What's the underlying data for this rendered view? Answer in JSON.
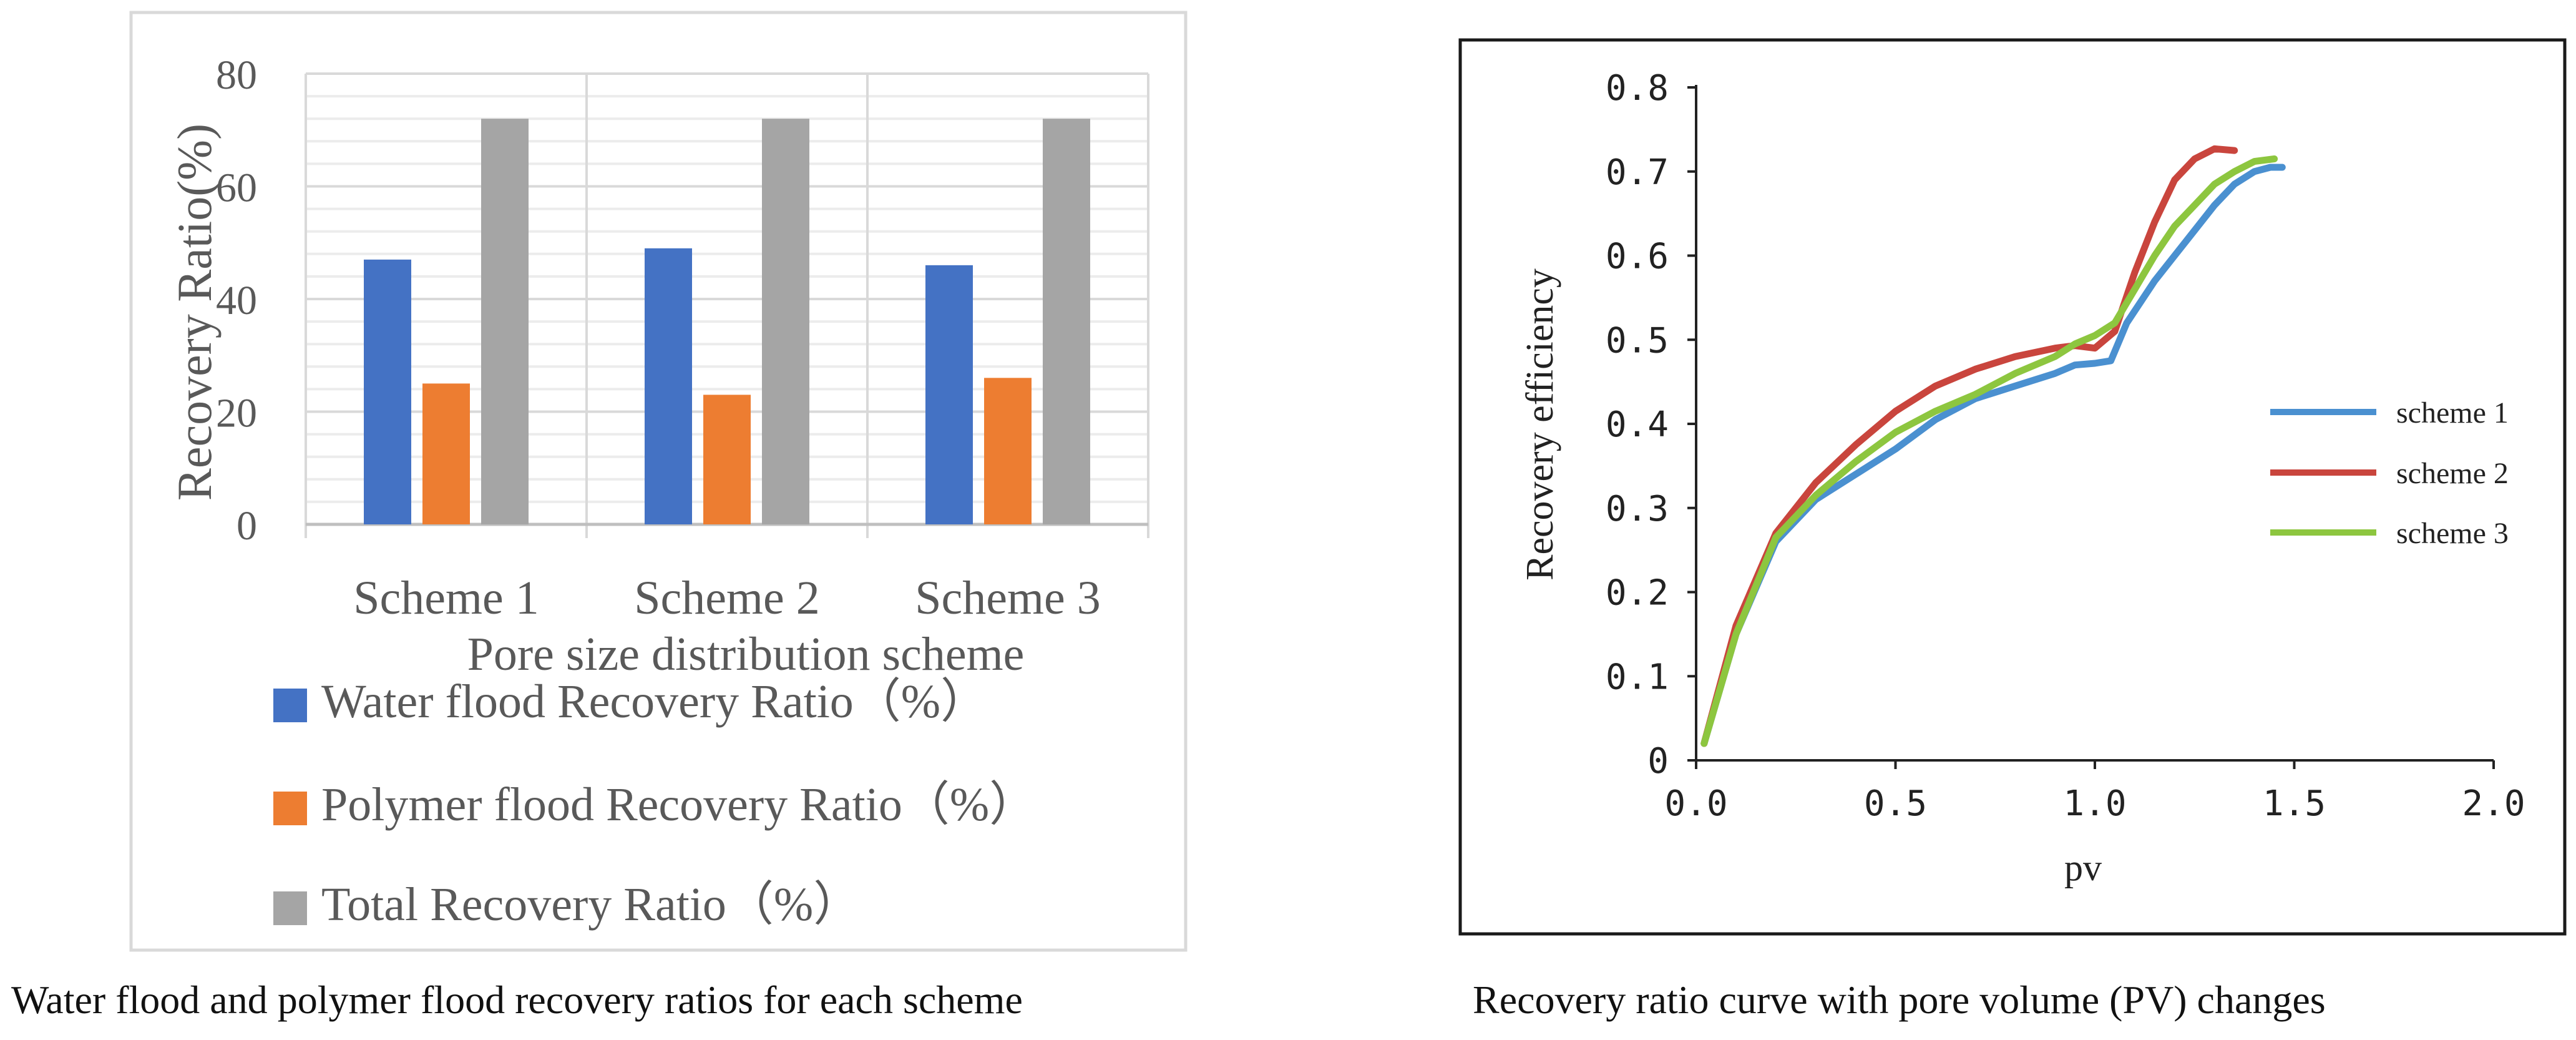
{
  "chart_data": [
    {
      "type": "bar",
      "title": "",
      "categories": [
        "Scheme 1",
        "Scheme 2",
        "Scheme 3"
      ],
      "series": [
        {
          "name": "Water flood Recovery Ratio（%）",
          "color": "#4472C4",
          "values": [
            47,
            49,
            46
          ]
        },
        {
          "name": "Polymer flood Recovery Ratio（%）",
          "color": "#ED7D31",
          "values": [
            25,
            23,
            26
          ]
        },
        {
          "name": "Total Recovery Ratio（%）",
          "color": "#A5A5A5",
          "values": [
            72,
            72,
            72
          ]
        }
      ],
      "xlabel": "Pore size distribution scheme",
      "ylabel": "Recovery Ratio(%)",
      "ylim": [
        0,
        80
      ],
      "yticks": [
        0,
        20,
        40,
        60,
        80
      ],
      "grid": true,
      "legend_position": "bottom",
      "caption": "Water flood and polymer flood recovery ratios for each scheme"
    },
    {
      "type": "line",
      "title": "",
      "xlabel": "pv",
      "ylabel": "Recovery efficiency",
      "xlim": [
        0,
        2.0
      ],
      "ylim": [
        0,
        0.8
      ],
      "xticks": [
        "0.0",
        "0.5",
        "1.0",
        "1.5",
        "2.0"
      ],
      "yticks": [
        "0",
        "0.1",
        "0.2",
        "0.3",
        "0.4",
        "0.5",
        "0.6",
        "0.7",
        "0.8"
      ],
      "grid": false,
      "legend_position": "right",
      "series": [
        {
          "name": "scheme 1",
          "color": "#4A90D0",
          "x": [
            0.02,
            0.1,
            0.2,
            0.3,
            0.4,
            0.5,
            0.6,
            0.7,
            0.8,
            0.9,
            0.95,
            1.0,
            1.04,
            1.08,
            1.15,
            1.2,
            1.25,
            1.3,
            1.35,
            1.4,
            1.44,
            1.47
          ],
          "y": [
            0.02,
            0.15,
            0.26,
            0.31,
            0.34,
            0.37,
            0.405,
            0.43,
            0.445,
            0.46,
            0.47,
            0.472,
            0.475,
            0.52,
            0.57,
            0.6,
            0.63,
            0.66,
            0.685,
            0.7,
            0.705,
            0.705
          ]
        },
        {
          "name": "scheme 2",
          "color": "#C9453D",
          "x": [
            0.02,
            0.1,
            0.2,
            0.3,
            0.4,
            0.5,
            0.6,
            0.7,
            0.8,
            0.9,
            0.95,
            1.0,
            1.05,
            1.1,
            1.15,
            1.2,
            1.25,
            1.3,
            1.35
          ],
          "y": [
            0.02,
            0.16,
            0.27,
            0.33,
            0.375,
            0.415,
            0.445,
            0.465,
            0.48,
            0.49,
            0.493,
            0.49,
            0.51,
            0.58,
            0.64,
            0.69,
            0.715,
            0.727,
            0.725
          ]
        },
        {
          "name": "scheme 3",
          "color": "#8DC63F",
          "x": [
            0.02,
            0.1,
            0.2,
            0.3,
            0.4,
            0.5,
            0.6,
            0.7,
            0.8,
            0.9,
            0.95,
            1.0,
            1.05,
            1.1,
            1.15,
            1.2,
            1.25,
            1.3,
            1.35,
            1.4,
            1.45
          ],
          "y": [
            0.02,
            0.15,
            0.265,
            0.315,
            0.355,
            0.39,
            0.415,
            0.435,
            0.46,
            0.48,
            0.495,
            0.505,
            0.52,
            0.56,
            0.6,
            0.635,
            0.66,
            0.685,
            0.7,
            0.712,
            0.715
          ]
        }
      ],
      "caption": "Recovery ratio curve with pore volume (PV) changes"
    }
  ]
}
